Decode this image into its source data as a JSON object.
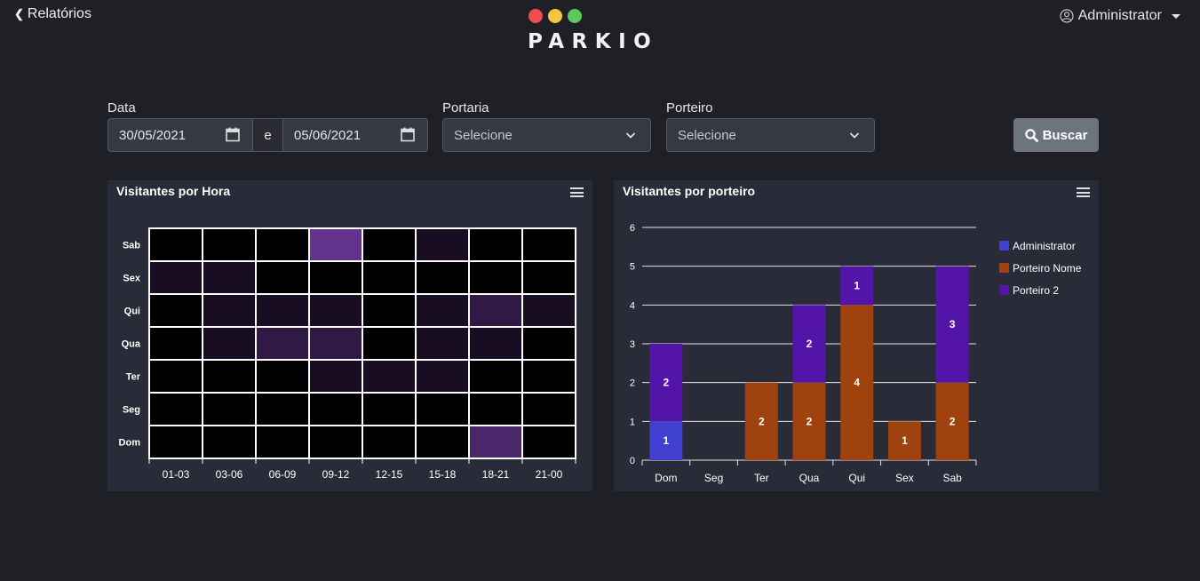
{
  "nav": {
    "back_label": "Relatórios",
    "back_icon": "chevron-left-icon"
  },
  "logo": {
    "word": "PARKIO",
    "dot_colors": [
      "#ef4e4e",
      "#f5c542",
      "#5ac85a"
    ]
  },
  "user": {
    "name": "Administrator",
    "icon": "user-circle-icon"
  },
  "filters": {
    "date_label": "Data",
    "date_from": "30/05/2021",
    "date_sep": "e",
    "date_to": "05/06/2021",
    "portaria_label": "Portaria",
    "portaria_value": "Selecione",
    "porteiro_label": "Porteiro",
    "porteiro_value": "Selecione",
    "search_label": "Buscar"
  },
  "chart_data": [
    {
      "type": "heatmap",
      "title": "Visitantes por Hora",
      "x_categories": [
        "01-03",
        "03-06",
        "06-09",
        "09-12",
        "12-15",
        "15-18",
        "18-21",
        "21-00"
      ],
      "y_categories": [
        "Dom",
        "Seg",
        "Ter",
        "Qua",
        "Qui",
        "Sex",
        "Sab"
      ],
      "color_min": "#000000",
      "color_max": "#7b3fb0",
      "values": [
        [
          0,
          0,
          0,
          0,
          0,
          0,
          3,
          0
        ],
        [
          0,
          0,
          0,
          0,
          0,
          0,
          0,
          0
        ],
        [
          0,
          0,
          0,
          1,
          1,
          1,
          0,
          0
        ],
        [
          0,
          1,
          2,
          2,
          0,
          1,
          1,
          0
        ],
        [
          0,
          1,
          1,
          1,
          0,
          1,
          2,
          1
        ],
        [
          1,
          1,
          0,
          0,
          0,
          0,
          0,
          0
        ],
        [
          0,
          0,
          0,
          4,
          0,
          1,
          0,
          0
        ]
      ],
      "max_value": 5
    },
    {
      "type": "bar",
      "stacked": true,
      "title": "Visitantes por porteiro",
      "categories": [
        "Dom",
        "Seg",
        "Ter",
        "Qua",
        "Qui",
        "Sex",
        "Sab"
      ],
      "series": [
        {
          "name": "Administrator",
          "color": "#3f3fd0",
          "values": [
            1,
            0,
            0,
            0,
            0,
            0,
            0
          ]
        },
        {
          "name": "Porteiro Nome",
          "color": "#a0420e",
          "values": [
            0,
            0,
            2,
            2,
            4,
            1,
            2
          ]
        },
        {
          "name": "Porteiro 2",
          "color": "#5414a8",
          "values": [
            2,
            0,
            0,
            2,
            1,
            0,
            3
          ]
        }
      ],
      "y_ticks": [
        "0",
        "1",
        "2",
        "3",
        "4",
        "5",
        "6"
      ],
      "ylim": [
        0,
        6
      ],
      "legend_position": "right"
    }
  ]
}
